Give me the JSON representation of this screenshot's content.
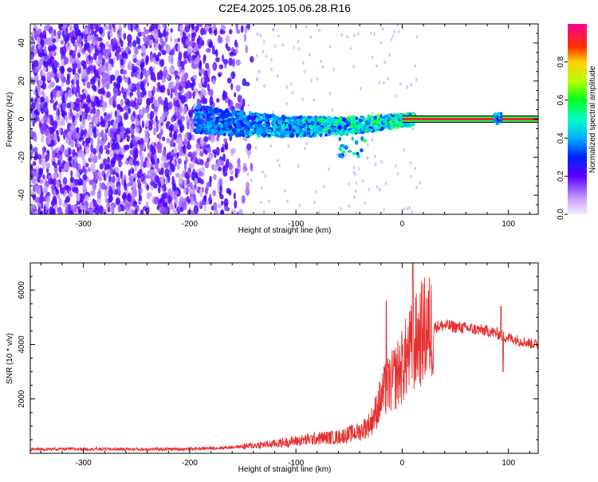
{
  "title": "C2E4.2025.105.06.28.R16",
  "colors": {
    "snr_line": "#e53030",
    "scatter_purple": "#7a2fe0",
    "axis": "#000000"
  },
  "chart_data": [
    {
      "type": "heatmap",
      "title": "",
      "xlabel": "Height of straight line (km)",
      "ylabel": "Frequency (Hz)",
      "xlim": [
        -350,
        128
      ],
      "ylim": [
        -50,
        50
      ],
      "x_ticks": [
        -300,
        -200,
        -100,
        0,
        100
      ],
      "x_tick_labels": [
        "-300",
        "-200",
        "-100",
        "0",
        "100"
      ],
      "y_ticks": [
        -40,
        -20,
        0,
        20,
        40
      ],
      "y_tick_labels": [
        "-40",
        "-20",
        "0",
        "20",
        "40"
      ],
      "colorbar": {
        "label": "Normalized spectral amplitude",
        "range": [
          0,
          1
        ],
        "ticks": [
          0.0,
          0.2,
          0.4,
          0.6,
          0.8
        ],
        "tick_labels": [
          "0.0",
          "0.2",
          "0.4",
          "0.6",
          "0.8"
        ],
        "colormap": "rainbow (white-violet-blue-cyan-green-yellow-red-magenta)"
      },
      "features": {
        "noise_region_x": [
          -350,
          -150
        ],
        "signal_start_x": -195,
        "signal_band_hz": [
          -8,
          8
        ],
        "tone_line_x": [
          0,
          128
        ],
        "tone_line_hz": 0
      },
      "grid": false,
      "legend": "none"
    },
    {
      "type": "line",
      "title": "",
      "xlabel": "Height of straight line (km)",
      "ylabel": "SNR (10 * v/v)",
      "xlim": [
        -350,
        128
      ],
      "ylim": [
        0,
        7000
      ],
      "x_ticks": [
        -300,
        -200,
        -100,
        0,
        100
      ],
      "x_tick_labels": [
        "-300",
        "-200",
        "-100",
        "0",
        "100"
      ],
      "y_ticks": [
        2000,
        4000,
        6000
      ],
      "y_tick_labels": [
        "2000",
        "4000",
        "6000"
      ],
      "series": [
        {
          "x": [
            -350,
            -300,
            -250,
            -200,
            -170,
            -150,
            -120,
            -100,
            -80,
            -60,
            -50,
            -40,
            -30,
            -25,
            -20,
            -15,
            -10,
            -5,
            0,
            5,
            10,
            15,
            20,
            30,
            40,
            50,
            60,
            70,
            80,
            90,
            95,
            100,
            110,
            120,
            128
          ],
          "y": [
            150,
            160,
            150,
            160,
            200,
            250,
            350,
            450,
            550,
            600,
            700,
            800,
            1100,
            1500,
            2000,
            2400,
            2600,
            2900,
            3200,
            3600,
            3900,
            4200,
            4500,
            4650,
            4700,
            4650,
            4600,
            4550,
            4500,
            4400,
            4300,
            4250,
            4150,
            4050,
            4000
          ]
        }
      ],
      "spikes": [
        {
          "x": -15,
          "y": 5600
        },
        {
          "x": 10,
          "y": 7000
        },
        {
          "x": 93,
          "y": 5400
        },
        {
          "x": 95,
          "y": 3000
        }
      ],
      "grid": false,
      "legend": "none"
    }
  ]
}
